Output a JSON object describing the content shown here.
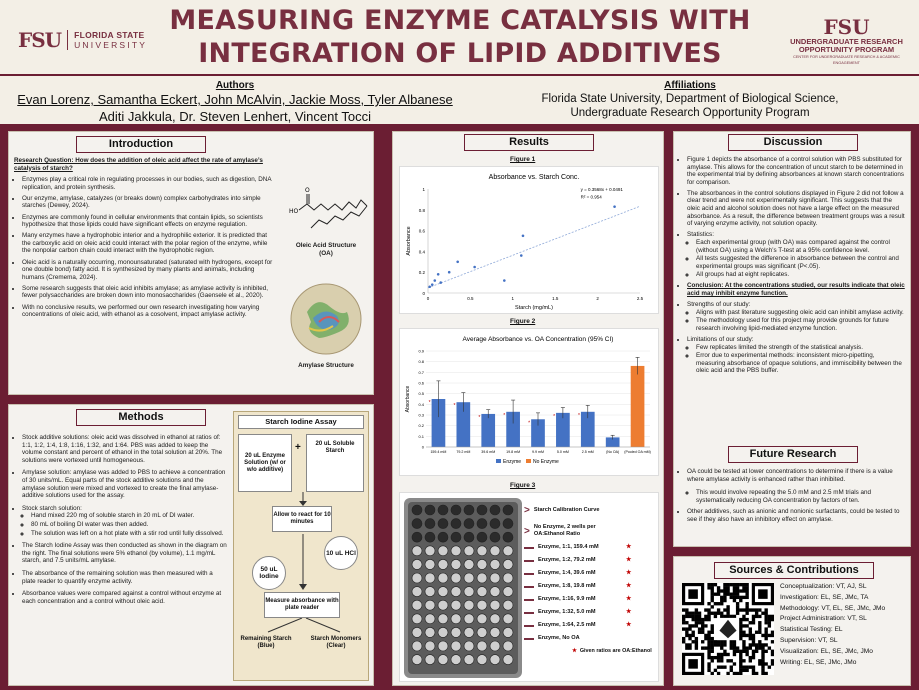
{
  "header": {
    "title_line1": "MEASURING ENZYME CATALYSIS WITH",
    "title_line2": "INTEGRATION OF LIPID ADDITIVES",
    "logo_left_fsu": "FSU",
    "logo_left_line1": "FLORIDA STATE",
    "logo_left_line2": "UNIVERSITY",
    "logo_right_fsu": "FSU",
    "logo_right_line1": "UNDERGRADUATE RESEARCH",
    "logo_right_line2": "OPPORTUNITY PROGRAM",
    "logo_right_line3": "CENTER FOR UNDERGRADUATE RESEARCH & ACADEMIC ENGAGEMENT"
  },
  "authors": {
    "heading": "Authors",
    "line1": " Evan Lorenz, Samantha Eckert, John McAlvin, Jackie Moss, Tyler Albanese",
    "line2": "Aditi Jakkula, Dr. Steven Lenhert, Vincent Tocci"
  },
  "affiliations": {
    "heading": "Affiliations",
    "line1": "Florida State University, Department of Biological Science,",
    "line2": "Undergraduate Research Opportunity Program"
  },
  "intro": {
    "title": "Introduction",
    "research_question": "Research Question: How does the addition of oleic acid affect the rate of amylase’s catalysis of starch?",
    "bullets": [
      "Enzymes play a critical role in regulating processes in our bodies, such as digestion, DNA replication, and protein synthesis.",
      "Our enzyme, amylase, catalyzes (or breaks down) complex carbohydrates into simple starches (Dewey, 2024).",
      "Enzymes are commonly found in cellular environments that contain lipids, so scientists hypothesize that those lipids could have significant effects on enzyme regulation.",
      "Many enzymes have a hydrophobic interior and a hydrophilic exterior. It is predicted that the carboxylic acid on oleic acid could interact with the polar region of the enzyme, while the nonpolar carbon chain could interact with the hydrophobic region.",
      "Oleic acid is a naturally occurring, monounsaturated (saturated with hydrogens, except for one double bond) fatty acid. It is synthesized by many plants and animals, including humans (Cremema, 2024).",
      "Some research suggests that oleic acid inhibits amylase; as amylase activity is inhibited, fewer polysaccharides are broken down into monosaccharides (Gaensele et al., 2020).",
      "With no conclusive results, we performed our own research investigating how varying concentrations of oleic acid, with ethanol as a cosolvent, impact amylase activity."
    ],
    "oa_caption_1": "Oleic Acid Structure",
    "oa_caption_2": "(OA)",
    "oa_ho": "HO",
    "oa_o": "O",
    "amylase_caption": "Amylase Structure"
  },
  "methods": {
    "title": "Methods",
    "bullets": [
      "Stock additive solutions: oleic acid was dissolved in ethanol at ratios of: 1:1, 1:2, 1:4, 1:8, 1:16, 1:32, and 1:64. PBS was added to keep the volume constant and percent of ethanol in the total solution at 20%. The solutions were vortexed until homogeneous.",
      "Amylase solution: amylase was added to PBS to achieve a concentration of 30 units/mL. Equal parts of the stock additive solutions and the amylase solution were mixed and vortexed to create the final amylase-additive solutions used for the assay.",
      "Stock starch solution:",
      "The Starch Iodine Assay was then conducted as shown in the diagram on the right. The final solutions were 5% ethanol (by volume), 1.1 mg/mL starch, and 7.5 units/mL amylase.",
      "The absorbance of the remaining solution was then measured with a plate reader to quantify enzyme activity.",
      "Absorbance values were compared against a control without enzyme at each concentration and a control without oleic acid."
    ],
    "starch_sub": [
      "Hand mixed 220 mg of soluble starch in 20 mL of DI water.",
      "80 mL of boiling DI water was then added.",
      "The solution was left on a hot plate with a stir rod until fully dissolved."
    ]
  },
  "assay": {
    "title": "Starch Iodine Assay",
    "box_enzyme": "20 uL Enzyme Solution (w/ or w/o additive)",
    "plus": "+",
    "box_starch": "20 uL Soluble Starch",
    "react": "Allow to react for 10 minutes",
    "hcl": "10 uL HCl",
    "iodine": "50 uL Iodine",
    "measure": "Measure absorbance with plate reader",
    "remaining": "Remaining Starch (Blue)",
    "monomers": "Starch Monomers (Clear)"
  },
  "results": {
    "title": "Results",
    "fig1_label": "Figure 1",
    "fig2_label": "Figure 2",
    "fig3_label": "Figure 3"
  },
  "chart_data": [
    {
      "type": "scatter",
      "title": "Absorbance vs. Starch Conc.",
      "xlabel": "Starch (mg/mL)",
      "ylabel": "Absorbance",
      "xlim": [
        0,
        2.5
      ],
      "ylim": [
        0,
        1
      ],
      "xticks": [
        "0",
        "0.5",
        "1",
        "1.5",
        "2",
        "2.5"
      ],
      "yticks": [
        "0",
        "0.2",
        "0.4",
        "0.6",
        "0.8",
        "1"
      ],
      "x": [
        0.02,
        0.05,
        0.08,
        0.12,
        0.15,
        0.25,
        0.35,
        0.55,
        0.9,
        1.1,
        1.12,
        2.2
      ],
      "y": [
        0.06,
        0.08,
        0.12,
        0.18,
        0.1,
        0.2,
        0.3,
        0.25,
        0.12,
        0.36,
        0.55,
        0.83
      ],
      "trend": [
        [
          0,
          0.0491
        ],
        [
          2.5,
          0.8341
        ]
      ],
      "equation": "y = 0.3568x + 0.0491",
      "r2": "R² = 0.954"
    },
    {
      "type": "bar",
      "title": "Average Absorbance vs. OA Concentration (95% CI)",
      "ylabel": "Absorbance",
      "ylim": [
        0,
        0.9
      ],
      "yticks": [
        "0",
        "0.1",
        "0.2",
        "0.3",
        "0.4",
        "0.5",
        "0.6",
        "0.7",
        "0.8",
        "0.9"
      ],
      "categories": [
        "159.4 mM",
        "79.2 mM",
        "39.6 mM",
        "19.8 mM",
        "9.9 mM",
        "5.0 mM",
        "2.5 mM",
        "(No OA)",
        "(Pooled OA mM)"
      ],
      "series": [
        {
          "name": "Enzyme",
          "values": [
            0.45,
            0.42,
            0.31,
            0.33,
            0.26,
            0.32,
            0.33,
            0.09,
            0.0
          ],
          "color": "#4472c4"
        },
        {
          "name": "No Enzyme",
          "values": [
            0,
            0,
            0,
            0,
            0,
            0,
            0,
            0,
            0.76
          ],
          "color": "#ed7d31"
        }
      ],
      "errors": [
        0.17,
        0.09,
        0.04,
        0.11,
        0.06,
        0.05,
        0.06,
        0.02,
        0.08
      ],
      "legend": [
        "Enzyme",
        "No Enzyme"
      ]
    }
  ],
  "plate": {
    "legend_title": "Starch Calibration Curve",
    "rows": [
      "No Enzyme, 2 wells per OA:Ethanol Ratio",
      "Enzyme, 1:1, 159.4 mM",
      "Enzyme, 1:2, 79.2 mM",
      "Enzyme, 1:4, 39.6 mM",
      "Enzyme, 1:8, 19.8 mM",
      "Enzyme, 1:16, 9.9 mM",
      "Enzyme, 1:32, 5.0 mM",
      "Enzyme, 1:64, 2.5 mM",
      "Enzyme, No OA"
    ],
    "note": "Given ratios are OA:Ethanol",
    "star": "★"
  },
  "discussion": {
    "title": "Discussion",
    "b1": "Figure 1 depicts the absorbance of a control solution with PBS substituted for amylase. This allows for the concentration of uncut starch to be determined in the experimental trial by defining absorbances at known starch concentrations for comparison.",
    "b2": "The absorbances in the control solutions displayed in Figure 2 did not follow a clear trend and were not experimentally significant. This suggests that the oleic acid and alcohol solution does not have a large effect on the measured absorbance. As a result, the difference between treatment groups was a result of varying enzyme activity, not solution opacity.",
    "b3": "Statistics:",
    "b3_sub": [
      "Each experimental group (with OA) was compared against the control (without OA) using a Welch’s T-test at a 95% confidence level.",
      "All tests suggested the difference in absorbance between the control and experimental groups was significant (P<.05).",
      "All groups had at eight replicates."
    ],
    "conclusion": "Conclusion: At the concentrations studied, our results indicate that oleic acid may inhibit enzyme function.",
    "b5": "Strengths of our study:",
    "b5_sub": [
      "Aligns with past literature suggesting oleic acid can inhibit amylase activity.",
      "The methodology used for this project may provide grounds for future research involving lipid-mediated enzyme function."
    ],
    "b6": "Limitations of our study:",
    "b6_sub": [
      "Few replicates limited the strength of the statistical analysis.",
      "Error due to experimental methods: inconsistent micro-pipetting, measuring absorbance of opaque solutions, and immiscibility between the oleic acid and the PBS buffer."
    ]
  },
  "future": {
    "title": "Future Research",
    "b1": "OA could be tested at lower concentrations to determine if there is a value where amylase activity is enhanced rather than inhibited.",
    "b1_sub": "This would involve repeating the 5.0 mM and 2.5 mM trials and systematically reducing OA concentration by factors of ten.",
    "b2": "Other additives, such as anionic and nonionic surfactants, could be tested to see if they also have an inhibitory effect on amylase."
  },
  "sources": {
    "title": "Sources & Contributions",
    "contributions": [
      "Conceptualization: VT, AJ, SL",
      "Investigation: EL, SE, JMc, TA",
      "Methodology: VT, EL, SE, JMc, JMo",
      "Project Administration: VT, SL",
      "Statistical Testing: EL",
      "Supervision: VT, SL",
      "Visualization: EL, SE, JMc, JMo",
      "Writing: EL, SE, JMc, JMo"
    ]
  },
  "colors": {
    "garnet": "#782f40",
    "gold": "#ceb888",
    "bar_blue": "#4472c4",
    "bar_orange": "#ed7d31",
    "star_red": "#c00000"
  }
}
